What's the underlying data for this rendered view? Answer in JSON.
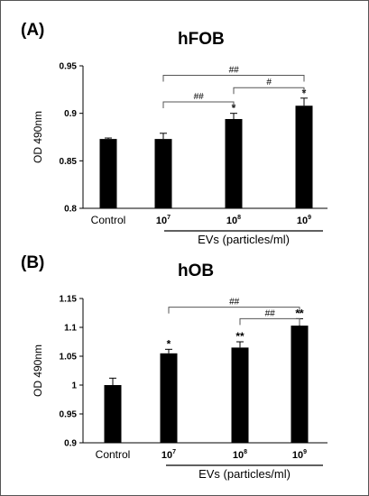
{
  "chart_data": [
    {
      "type": "bar",
      "panel_label": "(A)",
      "title": "hFOB",
      "ylabel": "OD 490nm",
      "ylim": [
        0.8,
        0.95
      ],
      "yticks": [
        0.8,
        0.85,
        0.9,
        0.95
      ],
      "ytick_labels": [
        "0.8",
        "0.85",
        "0.9",
        "0.95"
      ],
      "categories": [
        {
          "base": "Control",
          "exp": ""
        },
        {
          "base": "10",
          "exp": "7"
        },
        {
          "base": "10",
          "exp": "8"
        },
        {
          "base": "10",
          "exp": "9"
        }
      ],
      "values": [
        0.873,
        0.873,
        0.894,
        0.908
      ],
      "errors": [
        0.001,
        0.006,
        0.006,
        0.008
      ],
      "annotations": [
        "",
        "",
        "*",
        "*"
      ],
      "group_label": "EVs (particles/ml)",
      "group_span": [
        1,
        3
      ],
      "comparisons": [
        {
          "from": 1,
          "to": 3,
          "label": "##",
          "level": 0.94
        },
        {
          "from": 1,
          "to": 2,
          "label": "##",
          "level": 0.912
        },
        {
          "from": 2,
          "to": 3,
          "label": "#",
          "level": 0.927
        }
      ],
      "color": "#000000"
    },
    {
      "type": "bar",
      "panel_label": "(B)",
      "title": "hOB",
      "ylabel": "OD 490nm",
      "ylim": [
        0.9,
        1.15
      ],
      "yticks": [
        0.9,
        0.95,
        1.0,
        1.05,
        1.1,
        1.15
      ],
      "ytick_labels": [
        "0.9",
        "0.95",
        "1",
        "1.05",
        "1.1",
        "1.15"
      ],
      "categories": [
        {
          "base": "Control",
          "exp": ""
        },
        {
          "base": "10",
          "exp": "7"
        },
        {
          "base": "10",
          "exp": "8"
        },
        {
          "base": "10",
          "exp": "9"
        }
      ],
      "values": [
        1.0,
        1.055,
        1.065,
        1.103
      ],
      "errors": [
        0.012,
        0.007,
        0.01,
        0.012
      ],
      "annotations": [
        "",
        "*",
        "**",
        "**"
      ],
      "group_label": "EVs (particles/ml)",
      "group_span": [
        1,
        3
      ],
      "comparisons": [
        {
          "from": 1,
          "to": 3,
          "label": "##",
          "level": 1.135
        },
        {
          "from": 2,
          "to": 3,
          "label": "##",
          "level": 1.115
        }
      ],
      "color": "#000000"
    }
  ]
}
